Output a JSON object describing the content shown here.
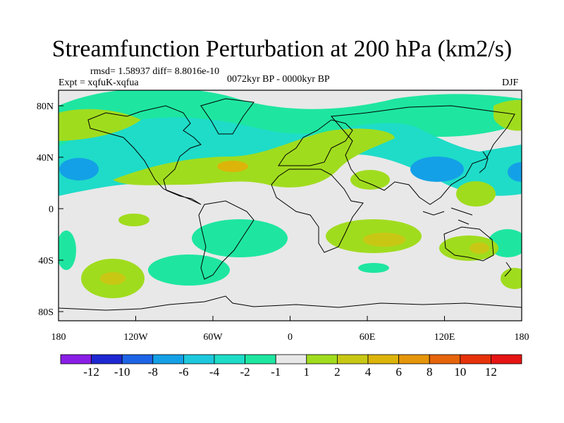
{
  "title": "Streamfunction Perturbation at 200 hPa (km2/s)",
  "stats": "rmsd= 1.58937 diff= 8.8016e-10",
  "experiment": "Expt = xqfuK-xqfua",
  "period": "0072kyr BP - 0000kyr BP",
  "season": "DJF",
  "axes": {
    "x_ticks": [
      "180",
      "120W",
      "60W",
      "0",
      "60E",
      "120E",
      "180"
    ],
    "y_ticks": [
      "80N",
      "40N",
      "0",
      "40S",
      "80S"
    ]
  },
  "colorbar": {
    "colors": [
      "#8a1ee6",
      "#1e28d2",
      "#1e64e6",
      "#14a0e6",
      "#1ec8dc",
      "#1edcc8",
      "#1ee6a0",
      "#e8e8e8",
      "#a0dc1e",
      "#c8c814",
      "#dcb40a",
      "#e6960a",
      "#e6640a",
      "#e6320a",
      "#e61414"
    ],
    "labels": [
      "-12",
      "-10",
      "-8",
      "-6",
      "-4",
      "-2",
      "-1",
      "1",
      "2",
      "4",
      "6",
      "8",
      "10",
      "12"
    ]
  }
}
